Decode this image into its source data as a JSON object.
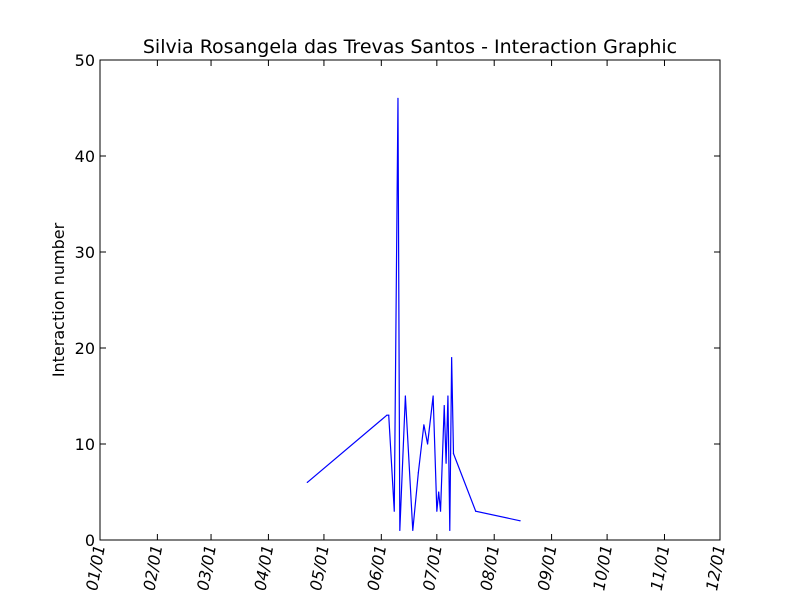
{
  "chart_data": {
    "type": "line",
    "title": "Silvia Rosangela das Trevas Santos - Interaction Graphic",
    "xlabel": "",
    "ylabel": "Interaction number",
    "x_type": "date",
    "xlim": [
      "2016-01-01",
      "2016-12-01"
    ],
    "ylim": [
      0,
      50
    ],
    "grid": false,
    "x_ticks": [
      {
        "date": "2016-01-01",
        "label": "01/01"
      },
      {
        "date": "2016-02-01",
        "label": "02/01"
      },
      {
        "date": "2016-03-01",
        "label": "03/01"
      },
      {
        "date": "2016-04-01",
        "label": "04/01"
      },
      {
        "date": "2016-05-01",
        "label": "05/01"
      },
      {
        "date": "2016-06-01",
        "label": "06/01"
      },
      {
        "date": "2016-07-01",
        "label": "07/01"
      },
      {
        "date": "2016-08-01",
        "label": "08/01"
      },
      {
        "date": "2016-09-01",
        "label": "09/01"
      },
      {
        "date": "2016-10-01",
        "label": "10/01"
      },
      {
        "date": "2016-11-01",
        "label": "11/01"
      },
      {
        "date": "2016-12-01",
        "label": "12/01"
      }
    ],
    "y_ticks": [
      0,
      10,
      20,
      30,
      40,
      50
    ],
    "series": [
      {
        "color": "#0000ff",
        "points": [
          {
            "x": "2016-04-22",
            "y": 6
          },
          {
            "x": "2016-06-04",
            "y": 13
          },
          {
            "x": "2016-06-05",
            "y": 13
          },
          {
            "x": "2016-06-08",
            "y": 3
          },
          {
            "x": "2016-06-10",
            "y": 46
          },
          {
            "x": "2016-06-11",
            "y": 1
          },
          {
            "x": "2016-06-14",
            "y": 15
          },
          {
            "x": "2016-06-18",
            "y": 1
          },
          {
            "x": "2016-06-21",
            "y": 7
          },
          {
            "x": "2016-06-24",
            "y": 12
          },
          {
            "x": "2016-06-26",
            "y": 10
          },
          {
            "x": "2016-06-29",
            "y": 15
          },
          {
            "x": "2016-07-01",
            "y": 3
          },
          {
            "x": "2016-07-02",
            "y": 5
          },
          {
            "x": "2016-07-03",
            "y": 3
          },
          {
            "x": "2016-07-05",
            "y": 14
          },
          {
            "x": "2016-07-06",
            "y": 8
          },
          {
            "x": "2016-07-07",
            "y": 15
          },
          {
            "x": "2016-07-08",
            "y": 1
          },
          {
            "x": "2016-07-09",
            "y": 19
          },
          {
            "x": "2016-07-10",
            "y": 9
          },
          {
            "x": "2016-07-22",
            "y": 3
          },
          {
            "x": "2016-08-15",
            "y": 2
          }
        ]
      }
    ]
  }
}
